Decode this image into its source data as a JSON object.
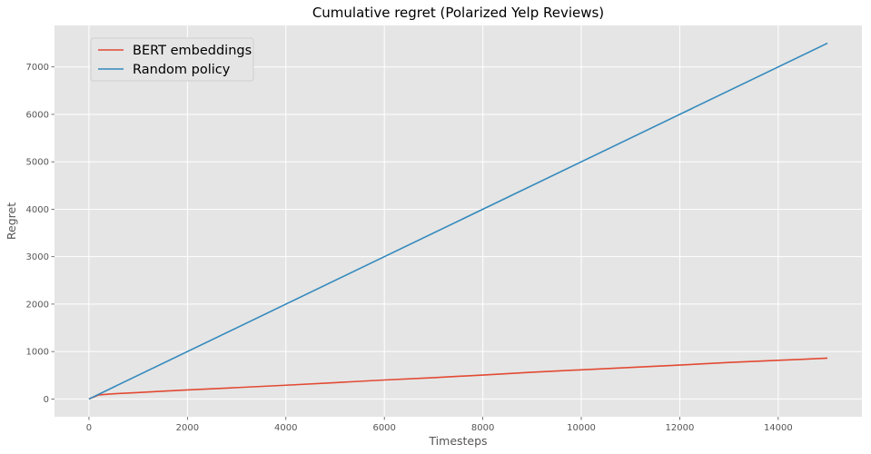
{
  "chart_data": {
    "type": "line",
    "title": "Cumulative regret (Polarized Yelp Reviews)",
    "xlabel": "Timesteps",
    "ylabel": "Regret",
    "xlim": [
      -700,
      15700
    ],
    "ylim": [
      -375,
      7875
    ],
    "xticks": [
      0,
      2000,
      4000,
      6000,
      8000,
      10000,
      12000,
      14000
    ],
    "yticks": [
      0,
      1000,
      2000,
      3000,
      4000,
      5000,
      6000,
      7000
    ],
    "grid": true,
    "legend_position": "top-left",
    "series": [
      {
        "name": "BERT embeddings",
        "color": "#e24a33",
        "x": [
          0,
          200,
          500,
          1000,
          1500,
          2000,
          3000,
          4000,
          5000,
          6000,
          7000,
          8000,
          9000,
          10000,
          11000,
          12000,
          13000,
          14000,
          15000
        ],
        "y": [
          0,
          85,
          110,
          135,
          165,
          190,
          240,
          290,
          345,
          400,
          450,
          505,
          565,
          615,
          665,
          715,
          770,
          815,
          860
        ]
      },
      {
        "name": "Random policy",
        "color": "#348abd",
        "x": [
          0,
          15000
        ],
        "y": [
          0,
          7500
        ]
      }
    ]
  }
}
